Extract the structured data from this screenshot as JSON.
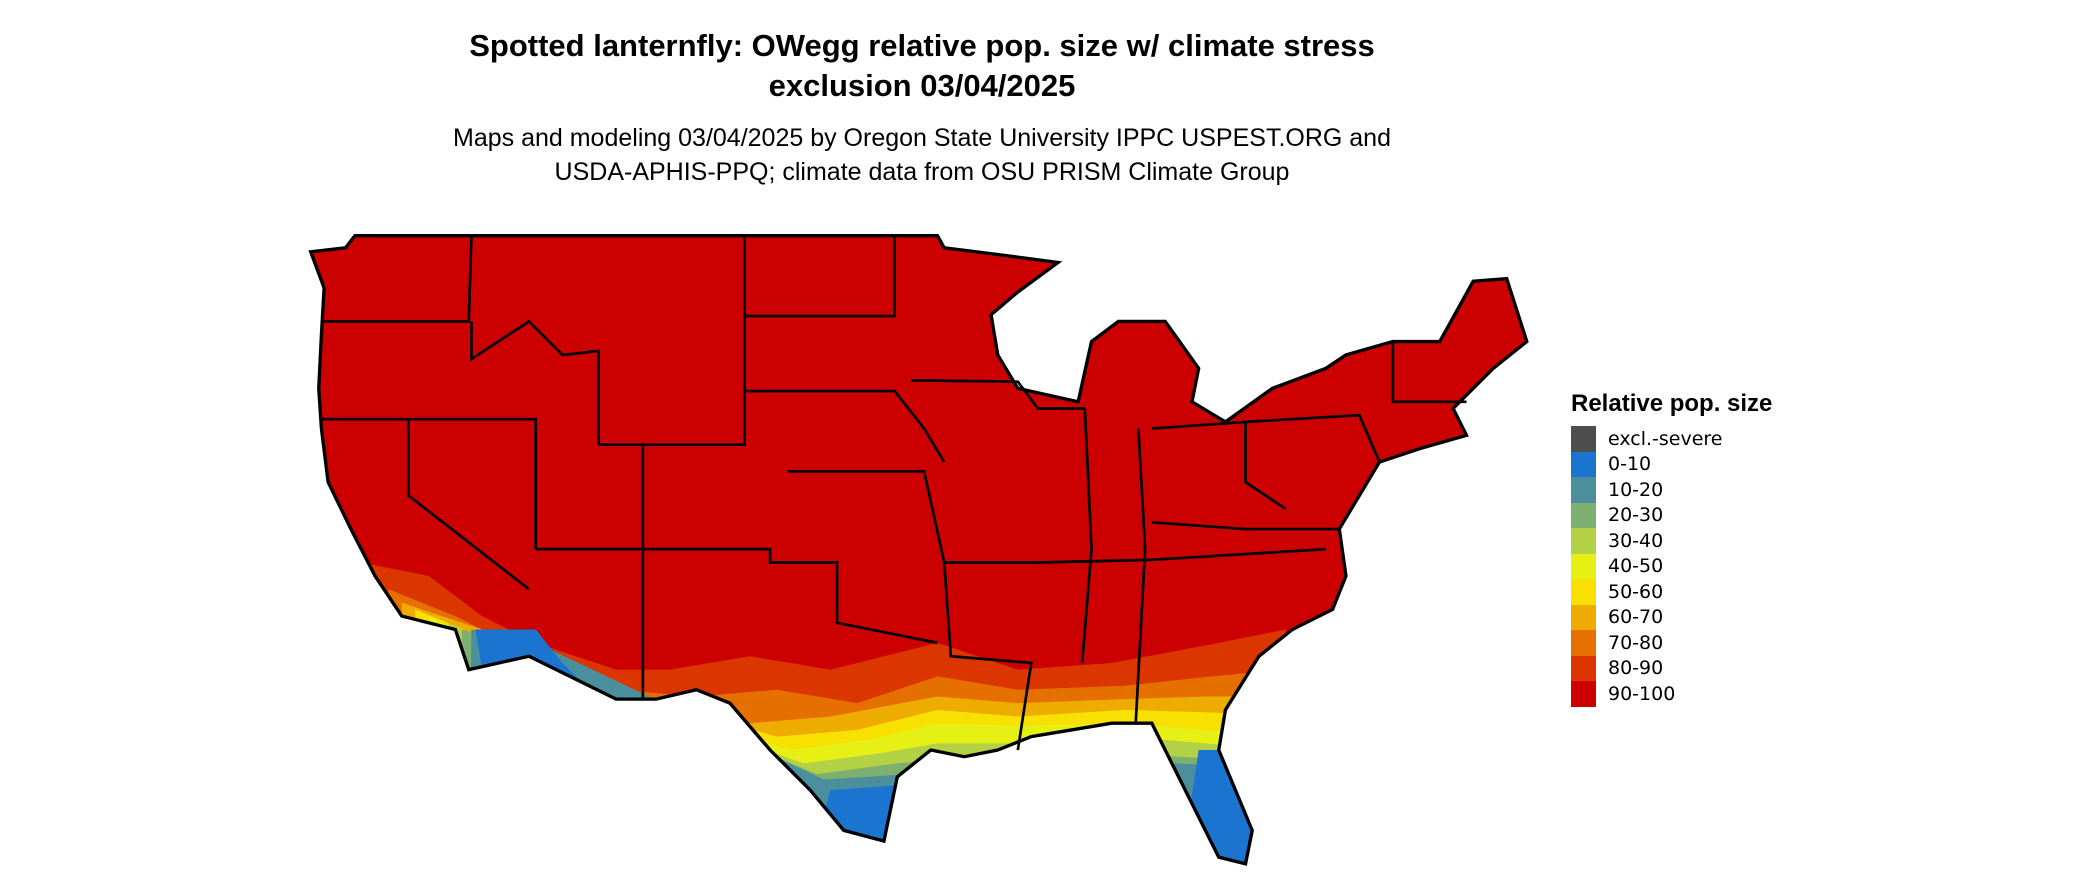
{
  "title": {
    "line1": "Spotted lanternfly: OWegg relative pop. size w/ climate stress",
    "line2": "exclusion 03/04/2025"
  },
  "subtitle": {
    "line1": "Maps and modeling 03/04/2025 by Oregon State University IPPC USPEST.ORG and",
    "line2": "USDA-APHIS-PPQ; climate data from OSU PRISM Climate Group"
  },
  "legend": {
    "title": "Relative pop. size",
    "items": [
      {
        "label": "excl.-severe",
        "color": "#4d4d4d"
      },
      {
        "label": "0-10",
        "color": "#1b74d0"
      },
      {
        "label": "10-20",
        "color": "#4a8f9b"
      },
      {
        "label": "20-30",
        "color": "#7db070"
      },
      {
        "label": "30-40",
        "color": "#b3d144"
      },
      {
        "label": "40-50",
        "color": "#e6f014"
      },
      {
        "label": "50-60",
        "color": "#f8e000"
      },
      {
        "label": "60-70",
        "color": "#eeab00"
      },
      {
        "label": "70-80",
        "color": "#e57000"
      },
      {
        "label": "80-90",
        "color": "#db3500"
      },
      {
        "label": "90-100",
        "color": "#cc0000"
      }
    ]
  }
}
